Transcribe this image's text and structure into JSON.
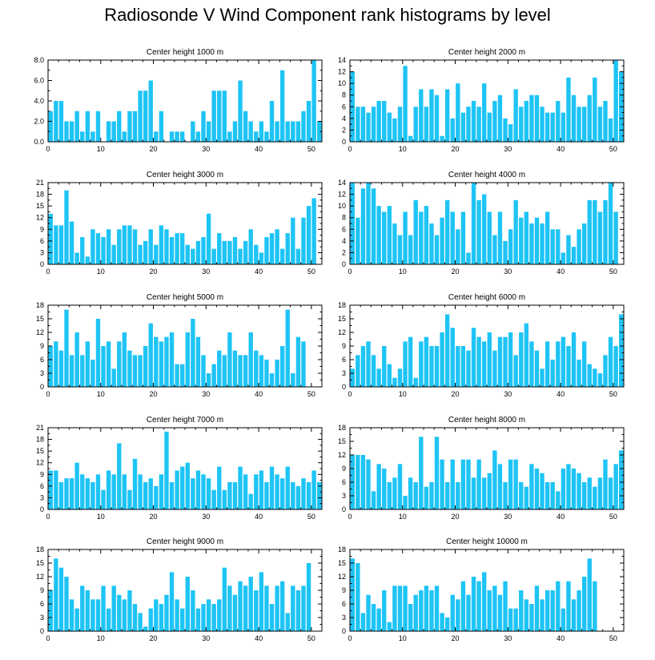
{
  "title": "Radiosonde V Wind Component rank histograms by level",
  "colors": {
    "bar": "#1ec4f5",
    "axis": "#000000",
    "background": "#ffffff"
  },
  "chart_data": [
    {
      "type": "bar",
      "title": "Center height 1000 m",
      "xlim": [
        0,
        52
      ],
      "ylim": [
        0,
        8
      ],
      "xticks": [
        0,
        10,
        20,
        30,
        40,
        50
      ],
      "yticks": [
        0,
        2,
        4,
        6,
        8
      ],
      "ytick_labels": [
        "0.0",
        "2.0",
        "4.0",
        "6.0",
        "8.0"
      ],
      "values": [
        3,
        4,
        4,
        2,
        2,
        3,
        1,
        3,
        1,
        3,
        0,
        2,
        2,
        3,
        1,
        3,
        3,
        5,
        5,
        6,
        1,
        3,
        0,
        1,
        1,
        1,
        0,
        2,
        1,
        3,
        2,
        5,
        5,
        5,
        1,
        2,
        6,
        3,
        2,
        1,
        2,
        1,
        4,
        2,
        7,
        2,
        2,
        2,
        3,
        4,
        8,
        2
      ]
    },
    {
      "type": "bar",
      "title": "Center height 2000 m",
      "xlim": [
        0,
        52
      ],
      "ylim": [
        0,
        14
      ],
      "xticks": [
        0,
        10,
        20,
        30,
        40,
        50
      ],
      "yticks": [
        0,
        2,
        4,
        6,
        8,
        10,
        12,
        14
      ],
      "ytick_labels": [
        "0",
        "2",
        "4",
        "6",
        "8",
        "10",
        "12",
        "14"
      ],
      "values": [
        12,
        6,
        6,
        5,
        6,
        7,
        7,
        5,
        4,
        6,
        13,
        1,
        6,
        9,
        6,
        9,
        8,
        1,
        9,
        4,
        10,
        5,
        6,
        7,
        6,
        10,
        5,
        7,
        8,
        4,
        3,
        9,
        6,
        7,
        8,
        8,
        6,
        5,
        5,
        7,
        5,
        11,
        8,
        6,
        6,
        8,
        11,
        6,
        7,
        4,
        14,
        12
      ]
    },
    {
      "type": "bar",
      "title": "Center height 3000 m",
      "xlim": [
        0,
        52
      ],
      "ylim": [
        0,
        21
      ],
      "xticks": [
        0,
        10,
        20,
        30,
        40,
        50
      ],
      "yticks": [
        0,
        3,
        6,
        9,
        12,
        15,
        18,
        21
      ],
      "ytick_labels": [
        "0",
        "3",
        "6",
        "9",
        "12",
        "15",
        "18",
        "21"
      ],
      "values": [
        13,
        10,
        10,
        19,
        11,
        3,
        7,
        2,
        9,
        8,
        7,
        9,
        5,
        9,
        10,
        10,
        9,
        5,
        6,
        9,
        5,
        10,
        9,
        7,
        8,
        8,
        5,
        4,
        6,
        7,
        13,
        4,
        8,
        6,
        6,
        7,
        4,
        6,
        9,
        5,
        3,
        7,
        8,
        9,
        4,
        8,
        12,
        4,
        12,
        15,
        17,
        0
      ]
    },
    {
      "type": "bar",
      "title": "Center height 4000 m",
      "xlim": [
        0,
        52
      ],
      "ylim": [
        0,
        14
      ],
      "xticks": [
        0,
        10,
        20,
        30,
        40,
        50
      ],
      "yticks": [
        0,
        2,
        4,
        6,
        8,
        10,
        12,
        14
      ],
      "ytick_labels": [
        "0",
        "2",
        "4",
        "6",
        "8",
        "10",
        "12",
        "14"
      ],
      "values": [
        14,
        8,
        13,
        14,
        13,
        10,
        9,
        10,
        7,
        5,
        9,
        5,
        11,
        9,
        10,
        7,
        5,
        8,
        11,
        9,
        6,
        9,
        2,
        14,
        11,
        12,
        9,
        5,
        9,
        4,
        6,
        11,
        8,
        9,
        7,
        8,
        7,
        9,
        6,
        6,
        2,
        5,
        3,
        6,
        7,
        11,
        11,
        9,
        11,
        14,
        9,
        0
      ]
    },
    {
      "type": "bar",
      "title": "Center height 5000 m",
      "xlim": [
        0,
        52
      ],
      "ylim": [
        0,
        18
      ],
      "xticks": [
        0,
        10,
        20,
        30,
        40,
        50
      ],
      "yticks": [
        0,
        3,
        6,
        9,
        12,
        15,
        18
      ],
      "ytick_labels": [
        "0",
        "3",
        "6",
        "9",
        "12",
        "15",
        "18"
      ],
      "values": [
        9,
        10,
        8,
        17,
        7,
        12,
        7,
        10,
        6,
        15,
        9,
        10,
        4,
        10,
        12,
        8,
        7,
        7,
        9,
        14,
        11,
        10,
        11,
        12,
        5,
        5,
        12,
        15,
        11,
        7,
        3,
        5,
        8,
        7,
        12,
        8,
        7,
        7,
        12,
        8,
        7,
        6,
        3,
        6,
        9,
        17,
        3,
        11,
        10,
        0,
        0,
        0
      ]
    },
    {
      "type": "bar",
      "title": "Center height 6000 m",
      "xlim": [
        0,
        52
      ],
      "ylim": [
        0,
        18
      ],
      "xticks": [
        0,
        10,
        20,
        30,
        40,
        50
      ],
      "yticks": [
        0,
        3,
        6,
        9,
        12,
        15,
        18
      ],
      "ytick_labels": [
        "0",
        "3",
        "6",
        "9",
        "12",
        "15",
        "18"
      ],
      "values": [
        4,
        7,
        9,
        10,
        7,
        4,
        9,
        5,
        2,
        4,
        10,
        11,
        2,
        10,
        11,
        9,
        9,
        12,
        16,
        13,
        9,
        9,
        8,
        13,
        11,
        10,
        12,
        8,
        11,
        11,
        12,
        7,
        12,
        14,
        10,
        8,
        4,
        10,
        6,
        10,
        11,
        9,
        12,
        6,
        10,
        5,
        4,
        3,
        7,
        11,
        9,
        16
      ]
    },
    {
      "type": "bar",
      "title": "Center height 7000 m",
      "xlim": [
        0,
        52
      ],
      "ylim": [
        0,
        21
      ],
      "xticks": [
        0,
        10,
        20,
        30,
        40,
        50
      ],
      "yticks": [
        0,
        3,
        6,
        9,
        12,
        15,
        18,
        21
      ],
      "ytick_labels": [
        "0",
        "3",
        "6",
        "9",
        "12",
        "15",
        "18",
        "21"
      ],
      "values": [
        10,
        10,
        7,
        8,
        8,
        12,
        9,
        8,
        7,
        9,
        5,
        10,
        9,
        17,
        9,
        5,
        13,
        9,
        7,
        8,
        6,
        9,
        20,
        7,
        10,
        11,
        12,
        8,
        10,
        9,
        8,
        5,
        11,
        5,
        7,
        7,
        11,
        9,
        4,
        9,
        10,
        7,
        11,
        9,
        8,
        11,
        7,
        6,
        8,
        7,
        10,
        7
      ]
    },
    {
      "type": "bar",
      "title": "Center height 8000 m",
      "xlim": [
        0,
        52
      ],
      "ylim": [
        0,
        18
      ],
      "xticks": [
        0,
        10,
        20,
        30,
        40,
        50
      ],
      "yticks": [
        0,
        3,
        6,
        9,
        12,
        15,
        18
      ],
      "ytick_labels": [
        "0",
        "3",
        "6",
        "9",
        "12",
        "15",
        "18"
      ],
      "values": [
        12,
        12,
        12,
        11,
        4,
        10,
        9,
        6,
        7,
        10,
        3,
        7,
        6,
        16,
        5,
        6,
        16,
        11,
        6,
        11,
        6,
        11,
        11,
        7,
        11,
        7,
        8,
        13,
        10,
        6,
        11,
        11,
        6,
        5,
        10,
        9,
        8,
        6,
        6,
        4,
        9,
        10,
        9,
        8,
        6,
        7,
        5,
        7,
        11,
        7,
        10,
        13
      ]
    },
    {
      "type": "bar",
      "title": "Center height 9000 m",
      "xlim": [
        0,
        52
      ],
      "ylim": [
        0,
        18
      ],
      "xticks": [
        0,
        10,
        20,
        30,
        40,
        50
      ],
      "yticks": [
        0,
        3,
        6,
        9,
        12,
        15,
        18
      ],
      "ytick_labels": [
        "0",
        "3",
        "6",
        "9",
        "12",
        "15",
        "18"
      ],
      "values": [
        9,
        16,
        14,
        12,
        7,
        5,
        10,
        9,
        7,
        7,
        10,
        5,
        10,
        8,
        7,
        9,
        6,
        4,
        1,
        5,
        7,
        6,
        8,
        13,
        7,
        5,
        12,
        9,
        5,
        6,
        7,
        6,
        7,
        14,
        10,
        8,
        11,
        10,
        12,
        9,
        13,
        10,
        6,
        10,
        11,
        4,
        10,
        9,
        10,
        15,
        0,
        0
      ]
    },
    {
      "type": "bar",
      "title": "Center height 10000 m",
      "xlim": [
        0,
        52
      ],
      "ylim": [
        0,
        18
      ],
      "xticks": [
        0,
        10,
        20,
        30,
        40,
        50
      ],
      "yticks": [
        0,
        3,
        6,
        9,
        12,
        15,
        18
      ],
      "ytick_labels": [
        "0",
        "3",
        "6",
        "9",
        "12",
        "15",
        "18"
      ],
      "values": [
        16,
        15,
        4,
        8,
        6,
        5,
        9,
        2,
        10,
        10,
        10,
        6,
        8,
        9,
        10,
        9,
        10,
        4,
        3,
        8,
        7,
        11,
        8,
        12,
        11,
        13,
        9,
        10,
        8,
        11,
        5,
        5,
        9,
        7,
        6,
        10,
        7,
        9,
        9,
        11,
        5,
        11,
        7,
        9,
        12,
        16,
        11,
        0,
        0,
        0,
        0,
        0
      ]
    }
  ]
}
